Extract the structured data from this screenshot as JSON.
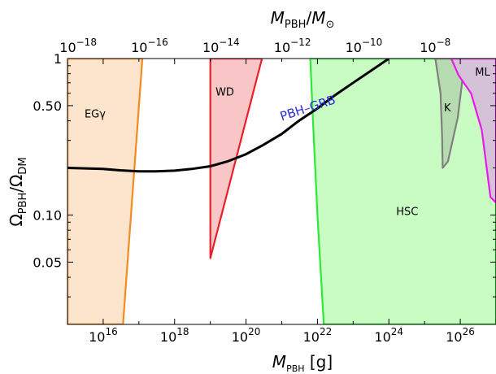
{
  "chart_data": {
    "type": "area",
    "xlabel": "M_PBH [g]",
    "ylabel": "Ω_PBH/Ω_DM",
    "top_xlabel": "M_PBH/M_⊙",
    "xscale": "log",
    "yscale": "log",
    "xlim": [
      1000000000000000.0,
      1e+27
    ],
    "ylim": [
      0.02,
      1.0
    ],
    "bottom_ticks": [
      {
        "value": 1e+16,
        "base": "10",
        "exp": "16"
      },
      {
        "value": 1e+18,
        "base": "10",
        "exp": "18"
      },
      {
        "value": 1e+20,
        "base": "10",
        "exp": "20"
      },
      {
        "value": 1e+22,
        "base": "10",
        "exp": "22"
      },
      {
        "value": 1e+24,
        "base": "10",
        "exp": "24"
      },
      {
        "value": 1e+26,
        "base": "10",
        "exp": "26"
      }
    ],
    "top_ticks": [
      {
        "value": 1e-18,
        "base": "10",
        "exp": "−18"
      },
      {
        "value": 1e-16,
        "base": "10",
        "exp": "−16"
      },
      {
        "value": 1e-14,
        "base": "10",
        "exp": "−14"
      },
      {
        "value": 1e-12,
        "base": "10",
        "exp": "−12"
      },
      {
        "value": 1e-10,
        "base": "10",
        "exp": "−10"
      },
      {
        "value": 1e-08,
        "base": "10",
        "exp": "−8"
      }
    ],
    "y_ticks": [
      {
        "value": 1.0,
        "label": "1"
      },
      {
        "value": 0.5,
        "label": "0.50"
      },
      {
        "value": 0.1,
        "label": "0.10"
      },
      {
        "value": 0.05,
        "label": "0.05"
      }
    ],
    "regions": [
      {
        "name": "EGγ",
        "label_at": [
          3000000000000000.0,
          0.42
        ],
        "fill": "#fde4cc",
        "stroke": "#f58a1f",
        "points": [
          [
            1000000000000000.0,
            1.0
          ],
          [
            1.25e+17,
            1.0
          ],
          [
            3.6e+16,
            0.02
          ],
          [
            1000000000000000.0,
            0.02
          ]
        ]
      },
      {
        "name": "WD",
        "label_at": [
          1.4e+19,
          0.58
        ],
        "fill": "#f8c6c6",
        "stroke": "#e8202a",
        "points": [
          [
            1e+19,
            1.0
          ],
          [
            2.8e+20,
            1.0
          ],
          [
            1e+19,
            0.053
          ]
        ]
      },
      {
        "name": "HSC",
        "label_at": [
          1.6e+24,
          0.1
        ],
        "fill": "#c9fcc3",
        "stroke": "#2ee83a",
        "points": [
          [
            6.3e+21,
            1.0
          ],
          [
            1e+27,
            1.0
          ],
          [
            1e+27,
            0.02
          ],
          [
            1.5e+22,
            0.02
          ],
          [
            1e+22,
            0.1
          ],
          [
            7.5e+21,
            0.4
          ]
        ]
      },
      {
        "name": "K",
        "label_at": [
          3.5e+25,
          0.46
        ],
        "fill": "#b7dbb1",
        "stroke": "#808080",
        "points": [
          [
            2e+25,
            1.0
          ],
          [
            9e+25,
            1.0
          ],
          [
            1.2e+26,
            0.8
          ],
          [
            8.5e+25,
            0.42
          ],
          [
            4.5e+25,
            0.22
          ],
          [
            3.2e+25,
            0.2
          ],
          [
            3.1e+25,
            0.32
          ],
          [
            2.8e+25,
            0.6
          ],
          [
            2e+25,
            1.0
          ]
        ]
      },
      {
        "name": "ML",
        "label_at": [
          2.6e+26,
          0.78
        ],
        "fill": "#d5c2d8",
        "stroke": "#e61ce6",
        "points": [
          [
            5.6e+25,
            1.0
          ],
          [
            1e+27,
            1.0
          ],
          [
            1e+27,
            0.12
          ],
          [
            7e+26,
            0.13
          ],
          [
            4e+26,
            0.35
          ],
          [
            2e+26,
            0.6
          ],
          [
            9e+25,
            0.78
          ]
        ]
      }
    ],
    "series": [
      {
        "name": "PBH–GRB",
        "color": "#000000",
        "label_color": "#2b2bd9",
        "label_at": [
          1e+21,
          0.4
        ],
        "points": [
          [
            1000000000000000.0,
            0.2
          ],
          [
            1e+16,
            0.197
          ],
          [
            3e+16,
            0.193
          ],
          [
            1e+17,
            0.19
          ],
          [
            3e+17,
            0.19
          ],
          [
            1e+18,
            0.192
          ],
          [
            3e+18,
            0.197
          ],
          [
            1e+19,
            0.205
          ],
          [
            3e+19,
            0.22
          ],
          [
            1e+20,
            0.245
          ],
          [
            3e+20,
            0.28
          ],
          [
            1e+21,
            0.33
          ],
          [
            3e+21,
            0.4
          ],
          [
            1e+22,
            0.48
          ],
          [
            3e+22,
            0.58
          ],
          [
            1e+23,
            0.7
          ],
          [
            3e+23,
            0.83
          ],
          [
            1e+24,
            1.0
          ]
        ]
      }
    ]
  }
}
